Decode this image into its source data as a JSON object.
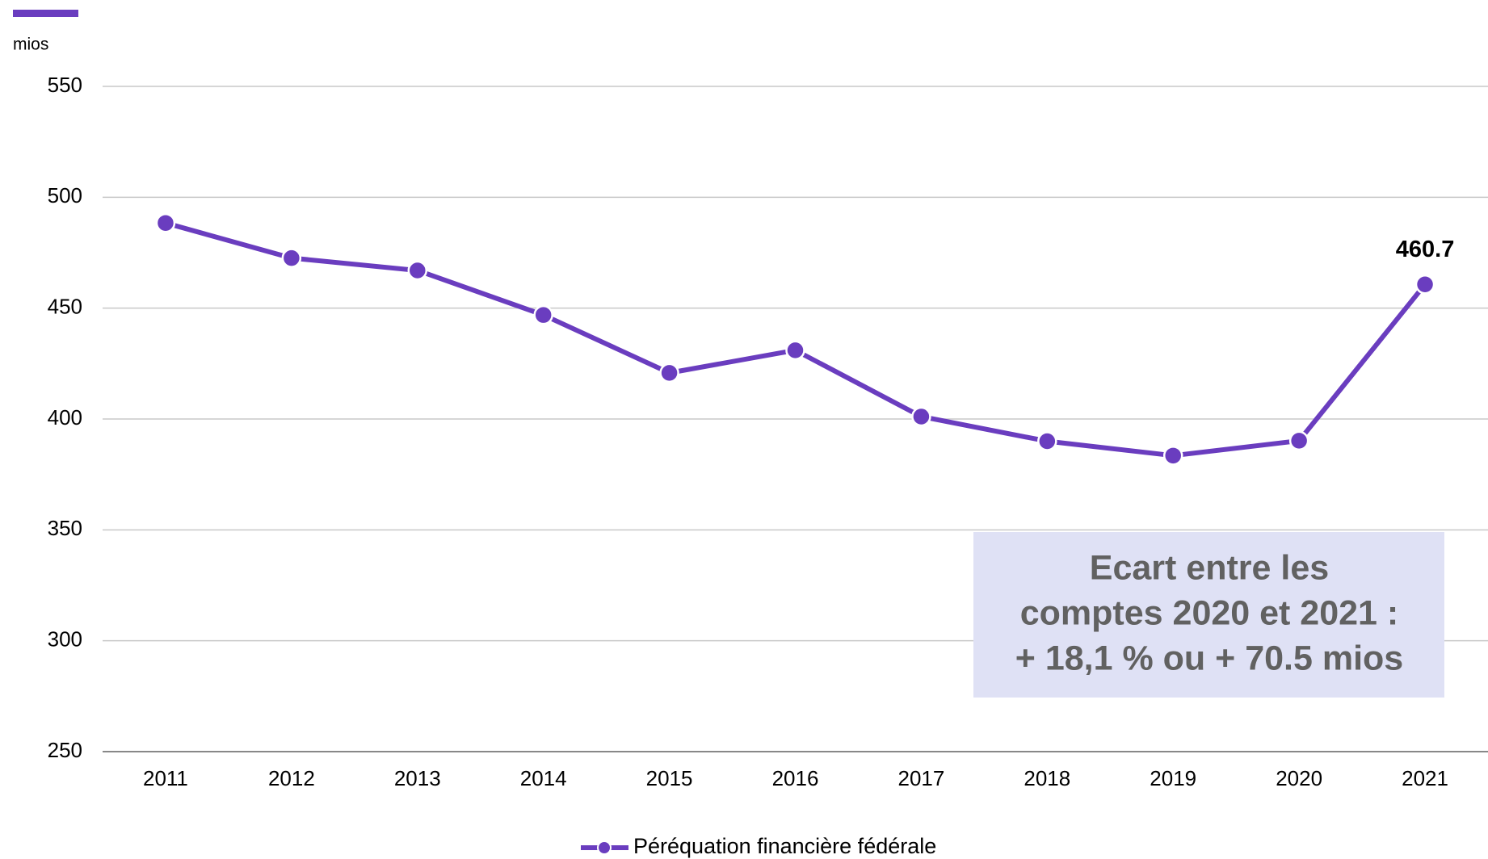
{
  "chart_data": {
    "type": "line",
    "y_unit": "mios",
    "categories": [
      "2011",
      "2012",
      "2013",
      "2014",
      "2015",
      "2016",
      "2017",
      "2018",
      "2019",
      "2020",
      "2021"
    ],
    "series": [
      {
        "name": "Péréquation financière fédérale",
        "color": "#6a3dbf",
        "values": [
          488.4,
          472.6,
          467,
          446.9,
          420.8,
          431,
          401.1,
          390,
          383.5,
          390.2,
          460.7
        ]
      }
    ],
    "ylim": [
      250,
      550
    ],
    "yticks": [
      250,
      300,
      350,
      400,
      450,
      500,
      550
    ],
    "grid": true,
    "labeled_point": 10,
    "annotation": [
      "Ecart entre les",
      "comptes 2020 et 2021 :",
      "+ 18,1 % ou + 70.5 mios"
    ],
    "legend": "bottom"
  }
}
